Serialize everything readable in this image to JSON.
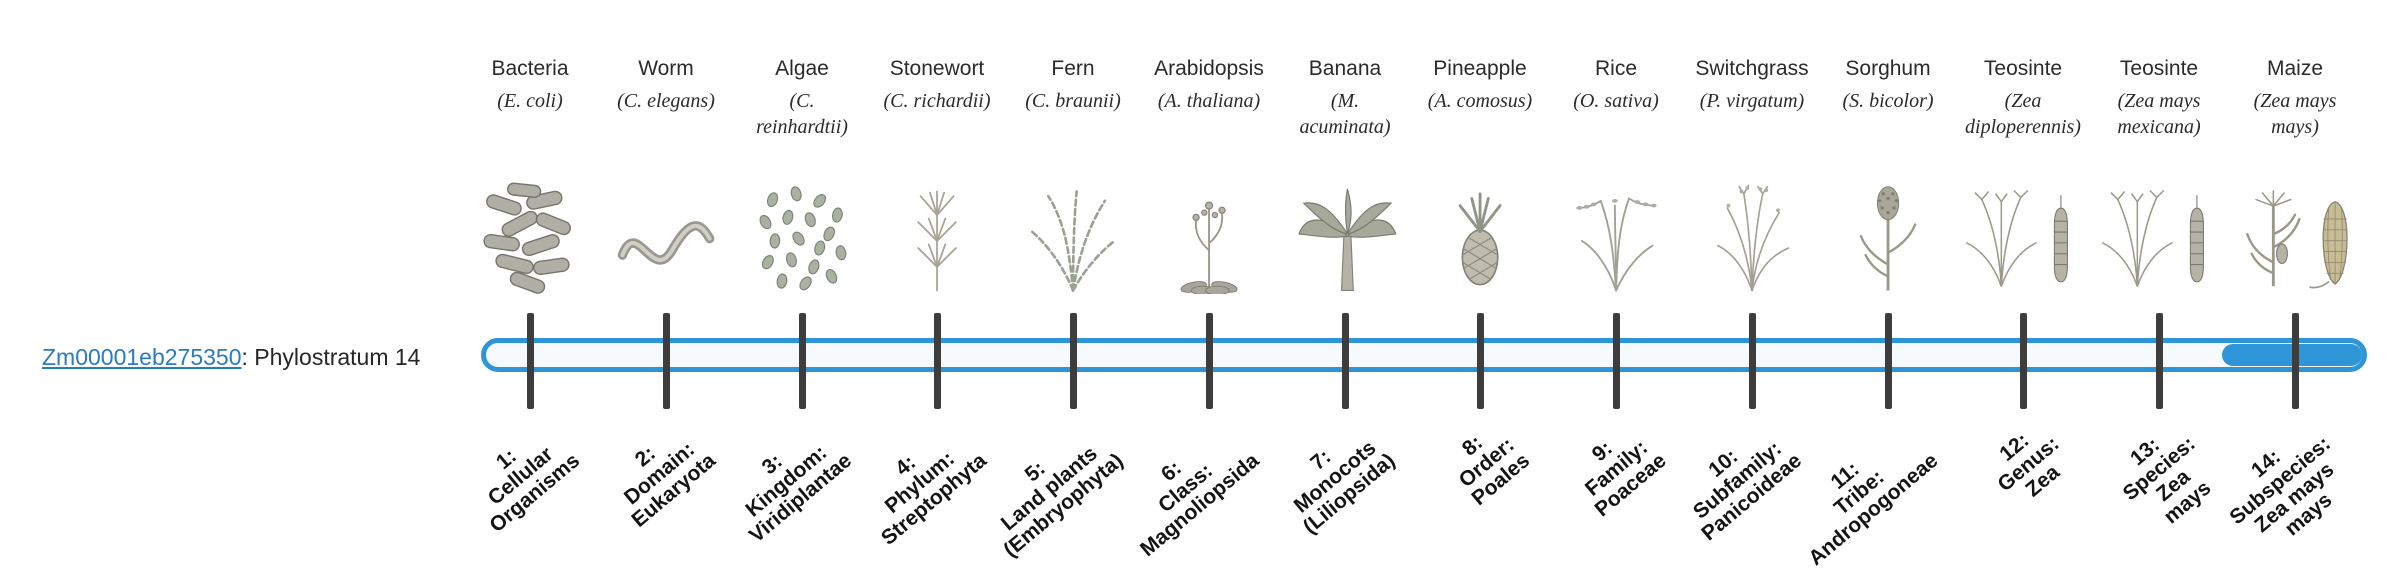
{
  "gene": {
    "id_label": "Zm00001eb275350",
    "suffix_label": ": Phylostratum 14"
  },
  "timeline": {
    "accent_color": "#2e96d8",
    "tick_color": "#3d3d3d",
    "highlighted_stratum": 14,
    "total_strata": 14
  },
  "strata": [
    {
      "num": 1,
      "organism": "Bacteria",
      "species": "(E. coli)",
      "icon": "bacteria-icon",
      "stratum_lines": [
        "1:",
        "Cellular",
        "Organisms"
      ]
    },
    {
      "num": 2,
      "organism": "Worm",
      "species": "(C. elegans)",
      "icon": "worm-icon",
      "stratum_lines": [
        "2:",
        "Domain:",
        "Eukaryota"
      ]
    },
    {
      "num": 3,
      "organism": "Algae",
      "species": "(C. reinhardtii)",
      "icon": "algae-icon",
      "stratum_lines": [
        "3:",
        "Kingdom:",
        "Viridiplantae"
      ]
    },
    {
      "num": 4,
      "organism": "Stonewort",
      "species": "(C. richardii)",
      "icon": "stonewort-icon",
      "stratum_lines": [
        "4:",
        "Phylum:",
        "Streptophyta"
      ]
    },
    {
      "num": 5,
      "organism": "Fern",
      "species": "(C. braunii)",
      "icon": "fern-icon",
      "stratum_lines": [
        "5:",
        "Land plants",
        "(Embryophyta)"
      ]
    },
    {
      "num": 6,
      "organism": "Arabidopsis",
      "species": "(A. thaliana)",
      "icon": "arabidopsis-icon",
      "stratum_lines": [
        "6:",
        "Class:",
        "Magnoliopsida"
      ]
    },
    {
      "num": 7,
      "organism": "Banana",
      "species": "(M. acuminata)",
      "icon": "banana-icon",
      "stratum_lines": [
        "7:",
        "Monocots",
        "(Liliopsida)"
      ]
    },
    {
      "num": 8,
      "organism": "Pineapple",
      "species": "(A. comosus)",
      "icon": "pineapple-icon",
      "stratum_lines": [
        "8:",
        "Order:",
        "Poales"
      ]
    },
    {
      "num": 9,
      "organism": "Rice",
      "species": "(O. sativa)",
      "icon": "rice-icon",
      "stratum_lines": [
        "9:",
        "Family:",
        "Poaceae"
      ]
    },
    {
      "num": 10,
      "organism": "Switchgrass",
      "species": "(P. virgatum)",
      "icon": "switchgrass-icon",
      "stratum_lines": [
        "10:",
        "Subfamily:",
        "Panicoideae"
      ]
    },
    {
      "num": 11,
      "organism": "Sorghum",
      "species": "(S. bicolor)",
      "icon": "sorghum-icon",
      "stratum_lines": [
        "11:",
        "Tribe:",
        "Andropogoneae"
      ]
    },
    {
      "num": 12,
      "organism": "Teosinte",
      "species": "(Zea diploperennis)",
      "icon": "teosinte-icon",
      "stratum_lines": [
        "12:",
        "Genus:",
        "Zea"
      ]
    },
    {
      "num": 13,
      "organism": "Teosinte",
      "species": "(Zea mays mexicana)",
      "icon": "teosinte-icon",
      "stratum_lines": [
        "13:",
        "Species:",
        "Zea",
        "mays"
      ]
    },
    {
      "num": 14,
      "organism": "Maize",
      "species": "(Zea mays mays)",
      "icon": "maize-icon",
      "stratum_lines": [
        "14:",
        "Subspecies:",
        "Zea mays",
        "mays"
      ]
    }
  ]
}
